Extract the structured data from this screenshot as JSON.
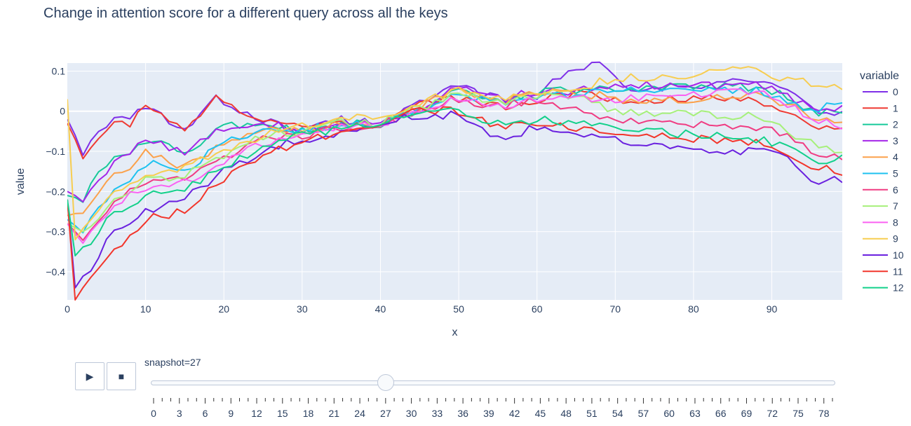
{
  "title": "Change in attention score for a different query across all the keys",
  "slider": {
    "label": "snapshot=27",
    "current": 27,
    "play_icon": "play-icon",
    "stop_icon": "stop-icon",
    "play_glyph": "▶",
    "stop_glyph": "■",
    "tick_labels": [
      "0",
      "3",
      "6",
      "9",
      "12",
      "15",
      "18",
      "21",
      "24",
      "27",
      "30",
      "33",
      "36",
      "39",
      "42",
      "45",
      "48",
      "51",
      "54",
      "57",
      "60",
      "63",
      "66",
      "69",
      "72",
      "75",
      "78"
    ],
    "min": 0,
    "max": 79
  },
  "chart_data": {
    "type": "line",
    "title": "Change in attention score for a different query across all the keys",
    "xlabel": "x",
    "ylabel": "value",
    "xlim": [
      0,
      99
    ],
    "ylim": [
      -0.47,
      0.12
    ],
    "x_ticks": [
      0,
      10,
      20,
      30,
      40,
      50,
      60,
      70,
      80,
      90
    ],
    "y_ticks": [
      0.1,
      0,
      -0.1,
      -0.2,
      -0.3,
      -0.4
    ],
    "y_tick_labels": [
      "0.1",
      "0",
      "−0.1",
      "−0.2",
      "−0.3",
      "−0.4"
    ],
    "grid": true,
    "legend_title": "variable",
    "legend_position": "right",
    "series": [
      {
        "name": "0",
        "color": "#7f2fe8",
        "keypoints": [
          [
            0,
            -0.02
          ],
          [
            2,
            -0.1
          ],
          [
            5,
            -0.03
          ],
          [
            8,
            -0.02
          ],
          [
            10,
            0.01
          ],
          [
            15,
            -0.05
          ],
          [
            19,
            0.03
          ],
          [
            25,
            -0.02
          ],
          [
            30,
            -0.05
          ],
          [
            35,
            -0.02
          ],
          [
            40,
            -0.03
          ],
          [
            45,
            0.02
          ],
          [
            50,
            0.06
          ],
          [
            55,
            0.03
          ],
          [
            60,
            0.04
          ],
          [
            64,
            0.1
          ],
          [
            68,
            0.12
          ],
          [
            72,
            0.06
          ],
          [
            80,
            0.06
          ],
          [
            88,
            0.08
          ],
          [
            92,
            0.05
          ],
          [
            95,
            0.01
          ],
          [
            99,
            -0.01
          ]
        ]
      },
      {
        "name": "1",
        "color": "#ef3a33",
        "keypoints": [
          [
            0,
            -0.03
          ],
          [
            2,
            -0.11
          ],
          [
            5,
            -0.04
          ],
          [
            8,
            -0.03
          ],
          [
            10,
            0.01
          ],
          [
            15,
            -0.05
          ],
          [
            19,
            0.03
          ],
          [
            25,
            -0.02
          ],
          [
            30,
            -0.04
          ],
          [
            35,
            -0.03
          ],
          [
            40,
            -0.03
          ],
          [
            45,
            0.02
          ],
          [
            50,
            0.03
          ],
          [
            55,
            0.01
          ],
          [
            60,
            0.03
          ],
          [
            66,
            0.05
          ],
          [
            70,
            0.03
          ],
          [
            80,
            0.03
          ],
          [
            88,
            0.03
          ],
          [
            92,
            0.0
          ],
          [
            95,
            -0.03
          ],
          [
            99,
            -0.05
          ]
        ]
      },
      {
        "name": "2",
        "color": "#16c99a",
        "keypoints": [
          [
            0,
            -0.21
          ],
          [
            2,
            -0.22
          ],
          [
            5,
            -0.13
          ],
          [
            8,
            -0.11
          ],
          [
            10,
            -0.07
          ],
          [
            15,
            -0.1
          ],
          [
            20,
            -0.04
          ],
          [
            25,
            -0.03
          ],
          [
            30,
            -0.05
          ],
          [
            35,
            -0.03
          ],
          [
            40,
            -0.03
          ],
          [
            45,
            0.0
          ],
          [
            50,
            0.05
          ],
          [
            55,
            0.02
          ],
          [
            60,
            0.05
          ],
          [
            65,
            0.05
          ],
          [
            70,
            0.06
          ],
          [
            80,
            0.06
          ],
          [
            88,
            0.06
          ],
          [
            92,
            0.04
          ],
          [
            95,
            0.0
          ],
          [
            99,
            -0.01
          ]
        ]
      },
      {
        "name": "3",
        "color": "#a425e8",
        "keypoints": [
          [
            0,
            -0.2
          ],
          [
            2,
            -0.22
          ],
          [
            5,
            -0.15
          ],
          [
            8,
            -0.1
          ],
          [
            10,
            -0.07
          ],
          [
            15,
            -0.1
          ],
          [
            20,
            -0.04
          ],
          [
            25,
            -0.03
          ],
          [
            30,
            -0.05
          ],
          [
            35,
            -0.03
          ],
          [
            40,
            -0.02
          ],
          [
            45,
            0.0
          ],
          [
            50,
            0.06
          ],
          [
            55,
            0.03
          ],
          [
            60,
            0.05
          ],
          [
            65,
            0.05
          ],
          [
            70,
            0.07
          ],
          [
            80,
            0.06
          ],
          [
            88,
            0.07
          ],
          [
            92,
            0.04
          ],
          [
            95,
            0.01
          ],
          [
            99,
            0.01
          ]
        ]
      },
      {
        "name": "4",
        "color": "#fba14b",
        "keypoints": [
          [
            0,
            -0.26
          ],
          [
            2,
            -0.25
          ],
          [
            5,
            -0.17
          ],
          [
            8,
            -0.15
          ],
          [
            10,
            -0.1
          ],
          [
            15,
            -0.14
          ],
          [
            20,
            -0.08
          ],
          [
            25,
            -0.05
          ],
          [
            30,
            -0.05
          ],
          [
            35,
            -0.03
          ],
          [
            40,
            -0.03
          ],
          [
            45,
            0.01
          ],
          [
            50,
            0.05
          ],
          [
            55,
            0.02
          ],
          [
            60,
            0.05
          ],
          [
            65,
            0.05
          ],
          [
            70,
            0.03
          ],
          [
            80,
            0.03
          ],
          [
            88,
            0.04
          ],
          [
            92,
            0.02
          ],
          [
            95,
            -0.01
          ],
          [
            99,
            -0.03
          ]
        ]
      },
      {
        "name": "5",
        "color": "#1ec2ef",
        "keypoints": [
          [
            0,
            -0.27
          ],
          [
            2,
            -0.3
          ],
          [
            5,
            -0.22
          ],
          [
            8,
            -0.17
          ],
          [
            10,
            -0.13
          ],
          [
            15,
            -0.15
          ],
          [
            20,
            -0.08
          ],
          [
            25,
            -0.05
          ],
          [
            30,
            -0.05
          ],
          [
            35,
            -0.03
          ],
          [
            40,
            -0.03
          ],
          [
            45,
            0.0
          ],
          [
            50,
            0.04
          ],
          [
            55,
            0.02
          ],
          [
            60,
            0.04
          ],
          [
            65,
            0.04
          ],
          [
            70,
            0.06
          ],
          [
            80,
            0.05
          ],
          [
            88,
            0.05
          ],
          [
            92,
            0.03
          ],
          [
            95,
            0.0
          ],
          [
            99,
            0.02
          ]
        ]
      },
      {
        "name": "6",
        "color": "#f03c82",
        "keypoints": [
          [
            0,
            -0.28
          ],
          [
            2,
            -0.32
          ],
          [
            5,
            -0.25
          ],
          [
            8,
            -0.2
          ],
          [
            10,
            -0.18
          ],
          [
            15,
            -0.17
          ],
          [
            20,
            -0.12
          ],
          [
            25,
            -0.07
          ],
          [
            30,
            -0.06
          ],
          [
            35,
            -0.04
          ],
          [
            40,
            -0.03
          ],
          [
            45,
            0.0
          ],
          [
            50,
            0.03
          ],
          [
            55,
            0.01
          ],
          [
            60,
            0.03
          ],
          [
            65,
            0.0
          ],
          [
            70,
            -0.02
          ],
          [
            80,
            -0.03
          ],
          [
            88,
            -0.04
          ],
          [
            92,
            -0.06
          ],
          [
            95,
            -0.1
          ],
          [
            99,
            -0.12
          ]
        ]
      },
      {
        "name": "7",
        "color": "#a6f07a",
        "keypoints": [
          [
            0,
            -0.28
          ],
          [
            2,
            -0.3
          ],
          [
            5,
            -0.24
          ],
          [
            8,
            -0.2
          ],
          [
            10,
            -0.17
          ],
          [
            15,
            -0.16
          ],
          [
            20,
            -0.11
          ],
          [
            25,
            -0.06
          ],
          [
            30,
            -0.05
          ],
          [
            35,
            -0.03
          ],
          [
            40,
            -0.03
          ],
          [
            45,
            0.01
          ],
          [
            50,
            0.04
          ],
          [
            55,
            0.02
          ],
          [
            60,
            0.04
          ],
          [
            65,
            0.04
          ],
          [
            70,
            0.0
          ],
          [
            80,
            -0.01
          ],
          [
            88,
            -0.01
          ],
          [
            92,
            -0.05
          ],
          [
            95,
            -0.08
          ],
          [
            99,
            -0.1
          ]
        ]
      },
      {
        "name": "8",
        "color": "#fa62f2",
        "keypoints": [
          [
            0,
            -0.28
          ],
          [
            2,
            -0.33
          ],
          [
            5,
            -0.26
          ],
          [
            8,
            -0.21
          ],
          [
            10,
            -0.19
          ],
          [
            15,
            -0.18
          ],
          [
            20,
            -0.13
          ],
          [
            25,
            -0.08
          ],
          [
            30,
            -0.06
          ],
          [
            35,
            -0.04
          ],
          [
            40,
            -0.03
          ],
          [
            45,
            0.0
          ],
          [
            50,
            0.03
          ],
          [
            55,
            0.01
          ],
          [
            60,
            0.03
          ],
          [
            65,
            0.03
          ],
          [
            70,
            0.03
          ],
          [
            80,
            0.04
          ],
          [
            88,
            0.05
          ],
          [
            92,
            0.02
          ],
          [
            95,
            -0.02
          ],
          [
            99,
            -0.04
          ]
        ]
      },
      {
        "name": "9",
        "color": "#f7cd50",
        "keypoints": [
          [
            0,
            0.03
          ],
          [
            1,
            -0.32
          ],
          [
            3,
            -0.27
          ],
          [
            5,
            -0.22
          ],
          [
            8,
            -0.18
          ],
          [
            10,
            -0.16
          ],
          [
            15,
            -0.14
          ],
          [
            20,
            -0.1
          ],
          [
            25,
            -0.06
          ],
          [
            30,
            -0.04
          ],
          [
            35,
            -0.02
          ],
          [
            40,
            -0.01
          ],
          [
            45,
            0.02
          ],
          [
            50,
            0.05
          ],
          [
            55,
            0.03
          ],
          [
            60,
            0.05
          ],
          [
            65,
            0.06
          ],
          [
            70,
            0.08
          ],
          [
            80,
            0.09
          ],
          [
            87,
            0.11
          ],
          [
            92,
            0.08
          ],
          [
            95,
            0.07
          ],
          [
            99,
            0.06
          ]
        ]
      },
      {
        "name": "10",
        "color": "#6a21df",
        "keypoints": [
          [
            0,
            -0.22
          ],
          [
            1,
            -0.44
          ],
          [
            3,
            -0.39
          ],
          [
            5,
            -0.32
          ],
          [
            8,
            -0.27
          ],
          [
            10,
            -0.25
          ],
          [
            15,
            -0.22
          ],
          [
            20,
            -0.15
          ],
          [
            25,
            -0.1
          ],
          [
            30,
            -0.07
          ],
          [
            35,
            -0.05
          ],
          [
            40,
            -0.03
          ],
          [
            45,
            -0.01
          ],
          [
            50,
            -0.01
          ],
          [
            55,
            -0.07
          ],
          [
            60,
            -0.04
          ],
          [
            65,
            -0.06
          ],
          [
            70,
            -0.07
          ],
          [
            80,
            -0.1
          ],
          [
            88,
            -0.1
          ],
          [
            92,
            -0.11
          ],
          [
            95,
            -0.18
          ],
          [
            99,
            -0.17
          ]
        ]
      },
      {
        "name": "11",
        "color": "#f2352b",
        "keypoints": [
          [
            0,
            -0.22
          ],
          [
            1,
            -0.47
          ],
          [
            3,
            -0.42
          ],
          [
            5,
            -0.37
          ],
          [
            8,
            -0.31
          ],
          [
            10,
            -0.27
          ],
          [
            15,
            -0.25
          ],
          [
            20,
            -0.17
          ],
          [
            25,
            -0.11
          ],
          [
            30,
            -0.08
          ],
          [
            35,
            -0.05
          ],
          [
            40,
            -0.03
          ],
          [
            45,
            0.0
          ],
          [
            50,
            0.0
          ],
          [
            55,
            -0.04
          ],
          [
            60,
            -0.03
          ],
          [
            65,
            -0.04
          ],
          [
            70,
            -0.05
          ],
          [
            80,
            -0.07
          ],
          [
            88,
            -0.08
          ],
          [
            92,
            -0.1
          ],
          [
            95,
            -0.14
          ],
          [
            99,
            -0.15
          ]
        ]
      },
      {
        "name": "12",
        "color": "#12d08a",
        "keypoints": [
          [
            0,
            -0.22
          ],
          [
            1,
            -0.36
          ],
          [
            3,
            -0.33
          ],
          [
            5,
            -0.27
          ],
          [
            8,
            -0.23
          ],
          [
            10,
            -0.21
          ],
          [
            15,
            -0.19
          ],
          [
            20,
            -0.14
          ],
          [
            25,
            -0.09
          ],
          [
            30,
            -0.06
          ],
          [
            35,
            -0.04
          ],
          [
            40,
            -0.03
          ],
          [
            45,
            -0.01
          ],
          [
            50,
            0.0
          ],
          [
            55,
            -0.03
          ],
          [
            60,
            -0.02
          ],
          [
            65,
            -0.03
          ],
          [
            70,
            -0.04
          ],
          [
            80,
            -0.06
          ],
          [
            88,
            -0.07
          ],
          [
            92,
            -0.09
          ],
          [
            95,
            -0.13
          ],
          [
            99,
            -0.12
          ]
        ]
      }
    ]
  }
}
